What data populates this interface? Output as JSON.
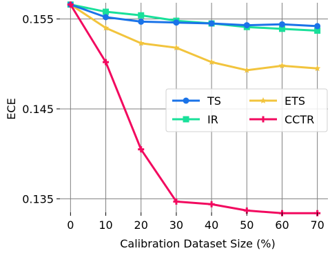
{
  "chart_data": {
    "type": "line",
    "title": "",
    "xlabel": "Calibration Dataset Size (%)",
    "ylabel": "ECE",
    "x": [
      0,
      10,
      20,
      30,
      40,
      50,
      60,
      70
    ],
    "xticks": [
      "0",
      "10",
      "20",
      "30",
      "40",
      "50",
      "60",
      "70"
    ],
    "yticks": [
      "0.135",
      "0.145",
      "0.155"
    ],
    "yticks_values": [
      0.135,
      0.145,
      0.155
    ],
    "xlim": [
      -3,
      73
    ],
    "ylim": [
      0.1335,
      0.1568
    ],
    "grid": true,
    "legend_position": "center-right",
    "series": [
      {
        "name": "TS",
        "color": "#1a73e8",
        "marker": "circle",
        "values": [
          0.1566,
          0.1552,
          0.1547,
          0.1546,
          0.1545,
          0.1543,
          0.1544,
          0.1542
        ]
      },
      {
        "name": "ETS",
        "color": "#f2c43d",
        "marker": "star",
        "values": [
          0.1566,
          0.154,
          0.1523,
          0.1518,
          0.1502,
          0.1493,
          0.1498,
          0.1495
        ]
      },
      {
        "name": "IR",
        "color": "#19e09a",
        "marker": "square",
        "values": [
          0.1566,
          0.1558,
          0.1554,
          0.1548,
          0.1545,
          0.1541,
          0.1539,
          0.1537
        ]
      },
      {
        "name": "CCTR",
        "color": "#f2095f",
        "marker": "plus",
        "values": [
          0.1566,
          0.1502,
          0.1405,
          0.1347,
          0.1344,
          0.1337,
          0.1334,
          0.1334
        ]
      }
    ]
  }
}
